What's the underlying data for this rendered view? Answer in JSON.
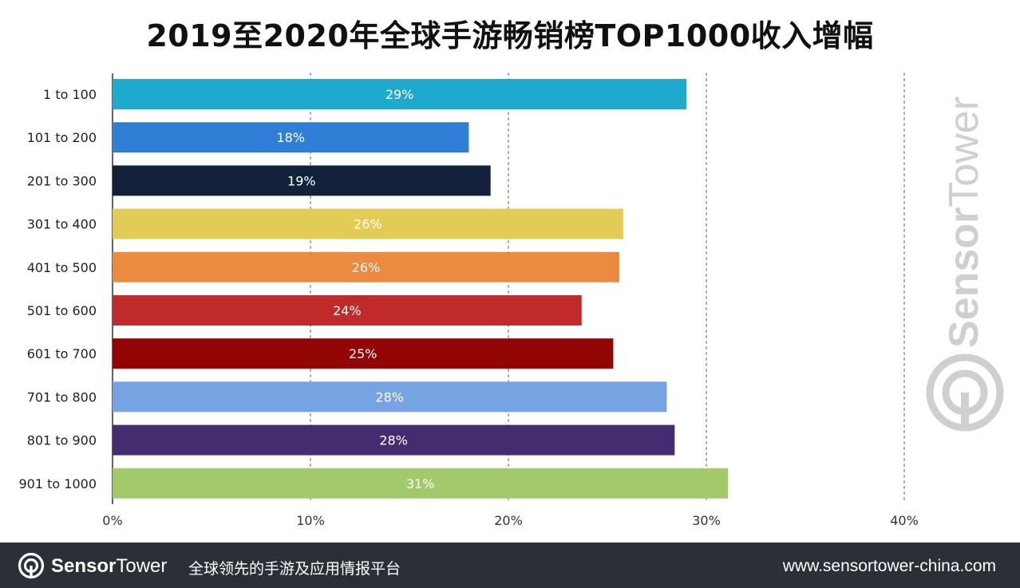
{
  "chart_data": {
    "type": "bar",
    "orientation": "horizontal",
    "title": "2019至2020年全球手游畅销榜TOP1000收入增幅",
    "categories": [
      "1 to 100",
      "101 to 200",
      "201 to 300",
      "301 to 400",
      "401 to 500",
      "501 to 600",
      "601 to 700",
      "701 to 800",
      "801 to 900",
      "901 to 1000"
    ],
    "values": [
      29,
      18,
      19,
      26,
      26,
      24,
      25,
      28,
      28,
      31
    ],
    "bar_values_precise": [
      29.0,
      18.0,
      19.1,
      25.8,
      25.6,
      23.7,
      25.3,
      28.0,
      28.4,
      31.1
    ],
    "data_labels": [
      "29%",
      "18%",
      "19%",
      "26%",
      "26%",
      "24%",
      "25%",
      "28%",
      "28%",
      "31%"
    ],
    "colors": [
      "#1fa9cc",
      "#2f7fd6",
      "#13223a",
      "#e2cc56",
      "#ec8b40",
      "#c12a2a",
      "#930404",
      "#76a3e2",
      "#452b6f",
      "#a3ca6a"
    ],
    "xlim": [
      0,
      40
    ],
    "x_ticks": [
      "0%",
      "10%",
      "20%",
      "30%",
      "40%"
    ],
    "grid": "vertical-dotted",
    "xlabel": "",
    "ylabel": ""
  },
  "watermark": {
    "part1": "Sensor",
    "part2": "Tower"
  },
  "footer": {
    "brand_part1": "Sensor",
    "brand_part2": "Tower",
    "slogan": "全球领先的手游及应用情报平台",
    "url": "www.sensortower-china.com"
  },
  "icons": {
    "logo": "sensortower-logo-icon"
  },
  "background_color": "#ffffff",
  "footer_color": "#2b2f36"
}
